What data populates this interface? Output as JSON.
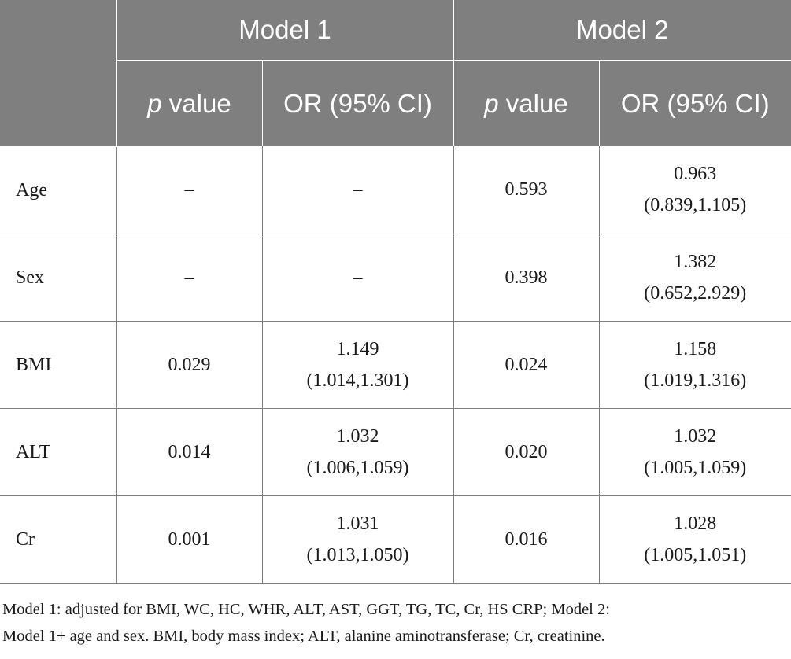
{
  "table": {
    "header": {
      "corner": "",
      "groups": [
        "Model 1",
        "Model 2"
      ],
      "p_italic": "p",
      "p_rest": " value",
      "or_label": "OR (95% CI)"
    },
    "rows": [
      {
        "label": "Age",
        "m1": {
          "p": "–",
          "or": "–",
          "ci": ""
        },
        "m2": {
          "p": "0.593",
          "or": "0.963",
          "ci": "(0.839,1.105)"
        }
      },
      {
        "label": "Sex",
        "m1": {
          "p": "–",
          "or": "–",
          "ci": ""
        },
        "m2": {
          "p": "0.398",
          "or": "1.382",
          "ci": "(0.652,2.929)"
        }
      },
      {
        "label": "BMI",
        "m1": {
          "p": "0.029",
          "or": "1.149",
          "ci": "(1.014,1.301)"
        },
        "m2": {
          "p": "0.024",
          "or": "1.158",
          "ci": "(1.019,1.316)"
        }
      },
      {
        "label": "ALT",
        "m1": {
          "p": "0.014",
          "or": "1.032",
          "ci": "(1.006,1.059)"
        },
        "m2": {
          "p": "0.020",
          "or": "1.032",
          "ci": "(1.005,1.059)"
        }
      },
      {
        "label": "Cr",
        "m1": {
          "p": "0.001",
          "or": "1.031",
          "ci": "(1.013,1.050)"
        },
        "m2": {
          "p": "0.016",
          "or": "1.028",
          "ci": "(1.005,1.051)"
        }
      }
    ]
  },
  "footnote": {
    "line1": "Model 1: adjusted for BMI, WC, HC, WHR, ALT, AST, GGT, TG, TC, Cr, HS CRP; Model 2:",
    "line2": "Model 1+ age and sex. BMI, body mass index; ALT, alanine aminotransferase; Cr, creatinine."
  },
  "colors": {
    "header_bg": "#7f7f7f",
    "header_text": "#ffffff",
    "rule": "#7f7f7f",
    "body_text": "#1a1a1a"
  }
}
